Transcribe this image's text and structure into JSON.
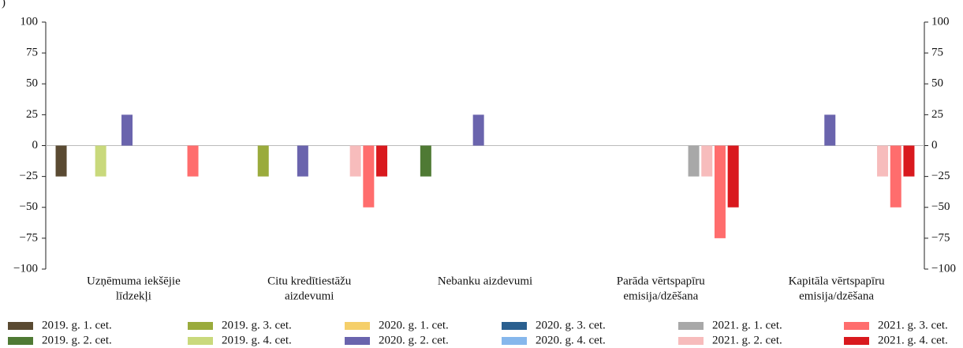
{
  "chart_data": {
    "type": "bar",
    "unit_label": ")",
    "categories": [
      [
        "Uzņēmuma iekšējie",
        "līdzekļi"
      ],
      [
        "Citu kredītiestāžu",
        "aizdevumi"
      ],
      [
        "Nebanku aizdevumi"
      ],
      [
        "Parāda vērtspapīru",
        "emisija/dzēšana"
      ],
      [
        "Kapitāla vērtspapīru",
        "emisija/dzēšana"
      ]
    ],
    "series": [
      {
        "name": "2019. g. 1. cet.",
        "color": "#5a4a32",
        "values": [
          -25,
          0,
          0,
          0,
          0
        ]
      },
      {
        "name": "2019. g. 2. cet.",
        "color": "#4f7a34",
        "values": [
          0,
          0,
          -25,
          0,
          0
        ]
      },
      {
        "name": "2019. g. 3. cet.",
        "color": "#9aab3c",
        "values": [
          0,
          -25,
          0,
          0,
          0
        ]
      },
      {
        "name": "2019. g. 4. cet.",
        "color": "#c9d97c",
        "values": [
          -25,
          0,
          0,
          0,
          0
        ]
      },
      {
        "name": "2020. g. 1. cet.",
        "color": "#f5cf6a",
        "values": [
          0,
          0,
          0,
          0,
          0
        ]
      },
      {
        "name": "2020. g. 2. cet.",
        "color": "#6a64ad",
        "values": [
          25,
          -25,
          25,
          0,
          25
        ]
      },
      {
        "name": "2020. g. 3. cet.",
        "color": "#2a5f8f",
        "values": [
          0,
          0,
          0,
          0,
          0
        ]
      },
      {
        "name": "2020. g. 4. cet.",
        "color": "#86b7ec",
        "values": [
          0,
          0,
          0,
          0,
          0
        ]
      },
      {
        "name": "2021. g. 1. cet.",
        "color": "#a8a8a8",
        "values": [
          0,
          0,
          0,
          -25,
          0
        ]
      },
      {
        "name": "2021. g. 2. cet.",
        "color": "#f7bcbc",
        "values": [
          0,
          -25,
          0,
          -25,
          -25
        ]
      },
      {
        "name": "2021. g. 3. cet.",
        "color": "#ff6d6d",
        "values": [
          -25,
          -50,
          0,
          -75,
          -50
        ]
      },
      {
        "name": "2021. g. 4. cet.",
        "color": "#d9191e",
        "values": [
          0,
          -25,
          0,
          -50,
          -25
        ]
      }
    ],
    "ylim": [
      -100,
      100
    ],
    "yticks": [
      100,
      75,
      50,
      25,
      0,
      {
        "value": -25,
        "label": "−25"
      },
      {
        "value": -50,
        "label": "−50"
      },
      {
        "value": -75,
        "label": "−75"
      },
      {
        "value": -100,
        "label": "−100"
      }
    ],
    "y2lim": [
      -100,
      100
    ],
    "y2ticks": [
      100,
      75,
      50,
      25,
      0,
      {
        "value": -25,
        "label": "−25"
      },
      {
        "value": -50,
        "label": "−50"
      },
      {
        "value": -75,
        "label": "−75"
      },
      {
        "value": -100,
        "label": "−100"
      }
    ],
    "grid": false
  }
}
